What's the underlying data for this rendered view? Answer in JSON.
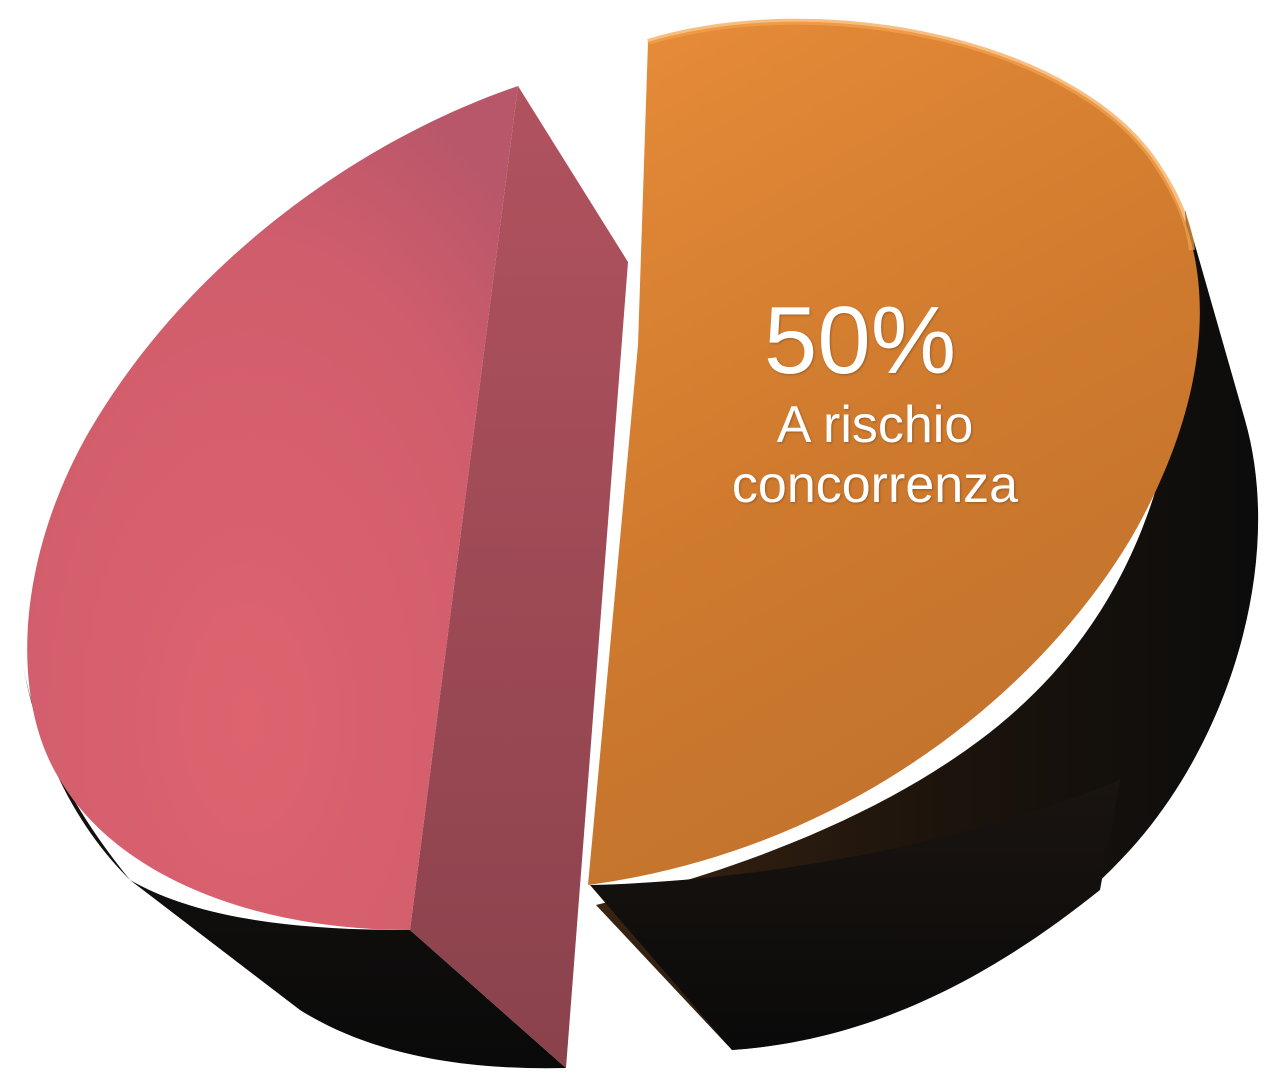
{
  "chart_data": {
    "type": "pie",
    "three_d": true,
    "exploded": true,
    "slices": [
      {
        "label": "A rischio concorrenza",
        "value": 50,
        "display": "50%",
        "color": "#D47A2C"
      },
      {
        "label": "",
        "value": 50,
        "display": "",
        "color": "#D45E6C"
      }
    ],
    "legend": "none"
  }
}
